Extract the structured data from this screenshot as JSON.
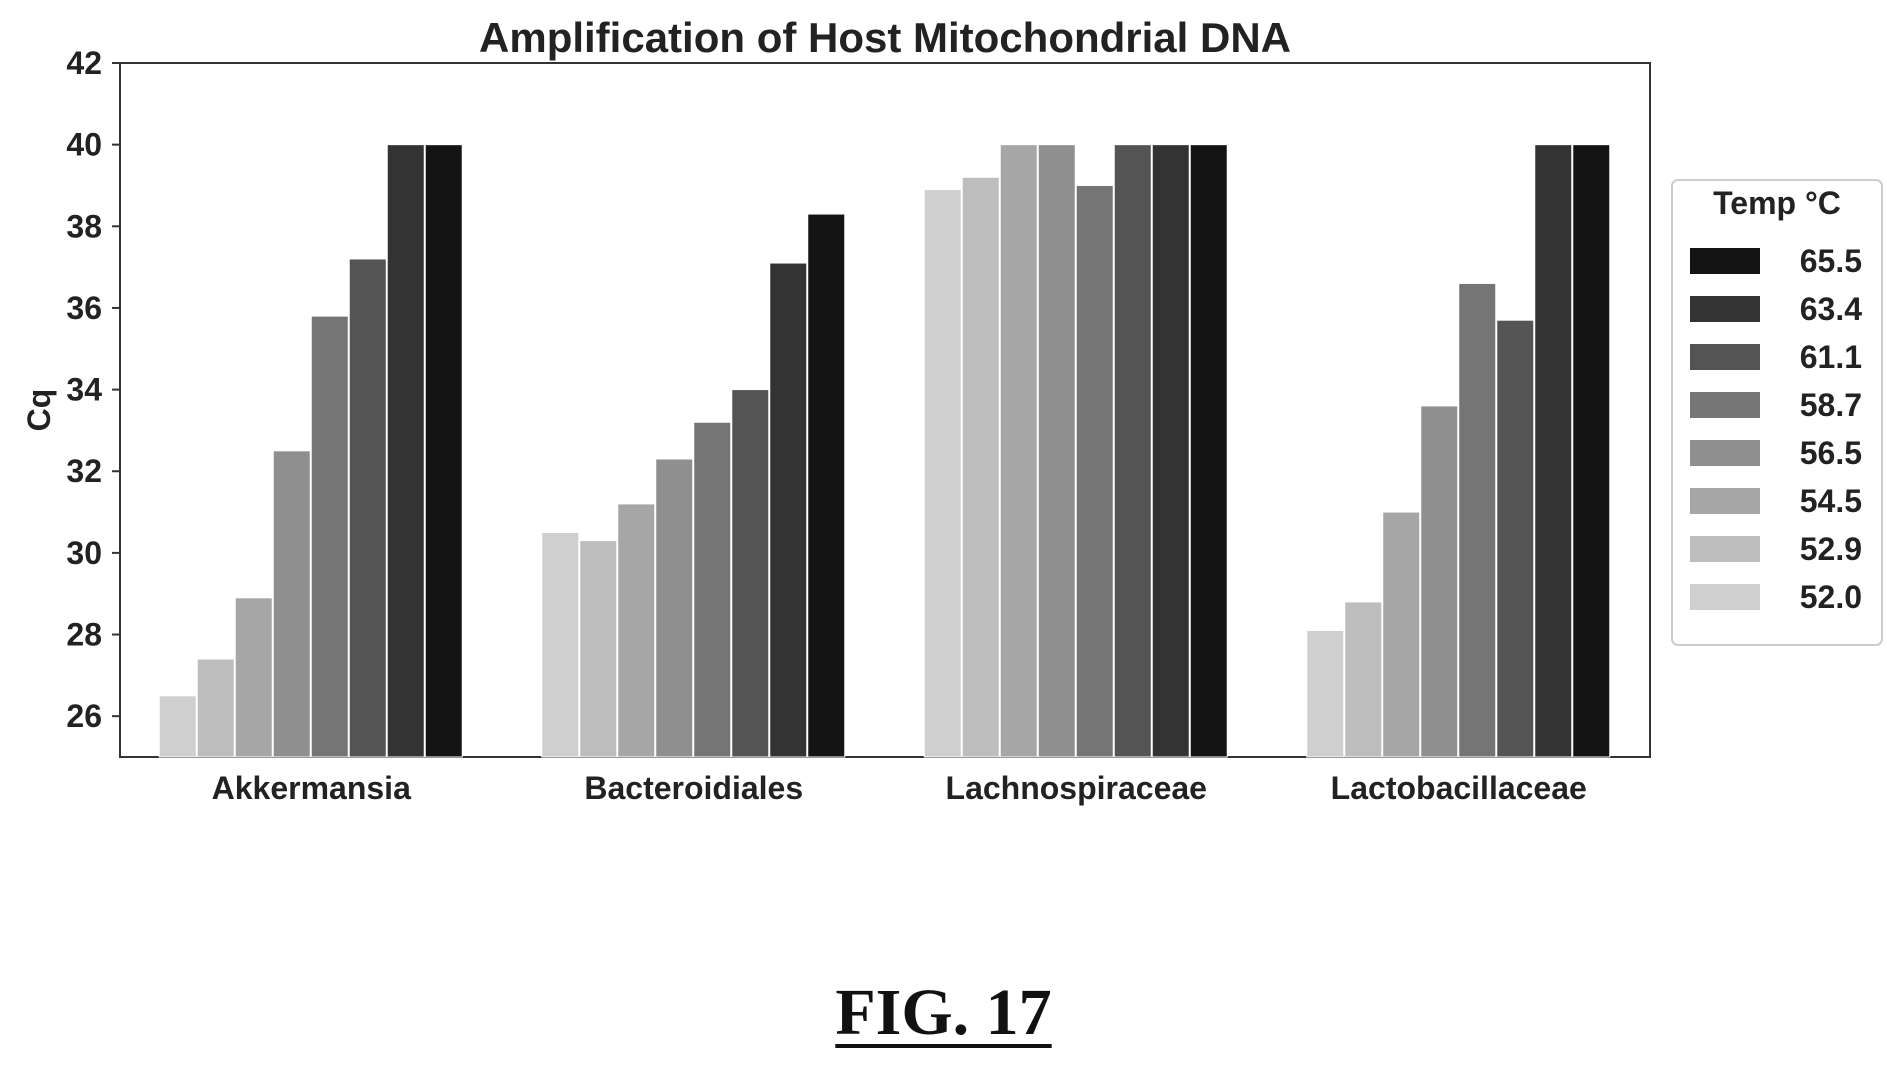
{
  "chart_data": {
    "type": "bar",
    "title": "Amplification of Host Mitochondrial DNA",
    "xlabel": "",
    "ylabel": "Cq",
    "ylim": [
      25,
      42
    ],
    "yticks": [
      "26",
      "28",
      "30",
      "32",
      "34",
      "36",
      "38",
      "40",
      "42"
    ],
    "categories": [
      "Akkermansia",
      "Bacteroidiales",
      "Lachnospiraceae",
      "Lactobacillaceae"
    ],
    "legend_title": "Temp °C",
    "legend_position": "right",
    "series": [
      {
        "name": "52.0",
        "color": "#cfcfcf",
        "values": [
          26.5,
          30.5,
          38.9,
          28.1
        ]
      },
      {
        "name": "52.9",
        "color": "#bdbdbd",
        "values": [
          27.4,
          30.3,
          39.2,
          28.8
        ]
      },
      {
        "name": "54.5",
        "color": "#a6a6a6",
        "values": [
          28.9,
          31.2,
          40.0,
          31.0
        ]
      },
      {
        "name": "56.5",
        "color": "#8f8f8f",
        "values": [
          32.5,
          32.3,
          40.0,
          33.6
        ]
      },
      {
        "name": "58.7",
        "color": "#757575",
        "values": [
          35.8,
          33.2,
          39.0,
          36.6
        ]
      },
      {
        "name": "61.1",
        "color": "#545454",
        "values": [
          37.2,
          34.0,
          40.0,
          35.7
        ]
      },
      {
        "name": "63.4",
        "color": "#333333",
        "values": [
          40.0,
          37.1,
          40.0,
          40.0
        ]
      },
      {
        "name": "65.5",
        "color": "#141414",
        "values": [
          40.0,
          38.3,
          40.0,
          40.0
        ]
      }
    ]
  },
  "figure_label": "FIG. 17"
}
